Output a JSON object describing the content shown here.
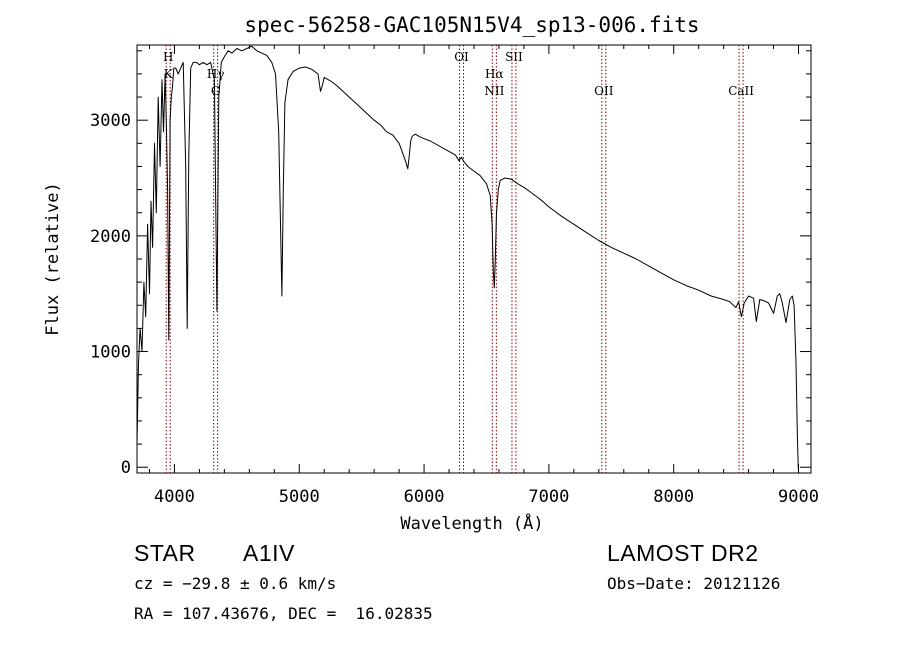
{
  "chart_data": {
    "type": "line",
    "title": "spec-56258-GAC105N15V4_sp13-006.fits",
    "xlabel": "Wavelength (Å)",
    "ylabel": "Flux (relative)",
    "xlim": [
      3700,
      9100
    ],
    "ylim": [
      -50,
      3650
    ],
    "x_ticks": [
      4000,
      5000,
      6000,
      7000,
      8000,
      9000
    ],
    "y_ticks": [
      0,
      1000,
      2000,
      3000
    ],
    "grid": false,
    "series": [
      {
        "x": [
          3700,
          3712,
          3725,
          3740,
          3755,
          3770,
          3785,
          3800,
          3812,
          3825,
          3840,
          3855,
          3870,
          3885,
          3900,
          3912,
          3925,
          3935,
          3945,
          3955,
          3965,
          3975,
          3985,
          3995,
          4010,
          4030,
          4050,
          4070,
          4090,
          4102,
          4115,
          4130,
          4150,
          4175,
          4200,
          4230,
          4260,
          4290,
          4320,
          4340,
          4355,
          4375,
          4400,
          4430,
          4460,
          4500,
          4540,
          4580,
          4620,
          4660,
          4700,
          4740,
          4780,
          4810,
          4835,
          4850,
          4861,
          4872,
          4885,
          4910,
          4950,
          5000,
          5050,
          5100,
          5150,
          5170,
          5185,
          5200,
          5250,
          5300,
          5350,
          5400,
          5450,
          5500,
          5550,
          5600,
          5650,
          5700,
          5750,
          5800,
          5850,
          5870,
          5880,
          5893,
          5905,
          5930,
          5960,
          6000,
          6050,
          6100,
          6150,
          6200,
          6250,
          6280,
          6300,
          6320,
          6350,
          6400,
          6450,
          6500,
          6530,
          6545,
          6555,
          6563,
          6571,
          6580,
          6595,
          6610,
          6650,
          6700,
          6750,
          6800,
          6850,
          6900,
          6950,
          7000,
          7100,
          7200,
          7300,
          7400,
          7500,
          7600,
          7700,
          7800,
          7900,
          8000,
          8100,
          8200,
          8300,
          8400,
          8450,
          8498,
          8520,
          8542,
          8565,
          8600,
          8640,
          8662,
          8690,
          8720,
          8760,
          8800,
          8830,
          8850,
          8870,
          8900,
          8930,
          8950,
          8965,
          8980,
          8990,
          8998
        ],
        "values": [
          200,
          900,
          1200,
          1000,
          1600,
          1300,
          2100,
          1500,
          2300,
          1900,
          2800,
          2200,
          3200,
          2600,
          3350,
          2900,
          3400,
          3000,
          2400,
          1100,
          3000,
          3200,
          3300,
          3450,
          3450,
          3400,
          3450,
          3500,
          2600,
          1200,
          2700,
          3450,
          3500,
          3500,
          3480,
          3500,
          3480,
          3500,
          3350,
          1350,
          3200,
          3500,
          3550,
          3600,
          3580,
          3620,
          3600,
          3620,
          3640,
          3600,
          3580,
          3560,
          3500,
          3400,
          2900,
          2100,
          1480,
          2400,
          3150,
          3350,
          3420,
          3450,
          3460,
          3440,
          3400,
          3250,
          3300,
          3370,
          3340,
          3300,
          3250,
          3200,
          3150,
          3100,
          3050,
          3000,
          2960,
          2900,
          2870,
          2800,
          2650,
          2580,
          2680,
          2820,
          2860,
          2880,
          2860,
          2840,
          2820,
          2790,
          2760,
          2730,
          2700,
          2650,
          2680,
          2640,
          2600,
          2560,
          2520,
          2450,
          2350,
          2100,
          1700,
          1550,
          1800,
          2200,
          2400,
          2480,
          2500,
          2490,
          2450,
          2420,
          2380,
          2340,
          2300,
          2250,
          2170,
          2100,
          2030,
          1960,
          1900,
          1850,
          1800,
          1740,
          1680,
          1620,
          1570,
          1530,
          1480,
          1450,
          1430,
          1380,
          1430,
          1300,
          1420,
          1480,
          1460,
          1260,
          1450,
          1440,
          1420,
          1330,
          1480,
          1500,
          1420,
          1250,
          1450,
          1480,
          1400,
          900,
          300,
          -20
        ]
      }
    ],
    "lines": [
      {
        "label": "H",
        "label2": "K",
        "x": 3950
      },
      {
        "label": "Hγ",
        "label2": "G",
        "x": 4330
      },
      {
        "label": "OI",
        "x": 6300
      },
      {
        "label": "Hα",
        "label2": "NII",
        "x": 6563
      },
      {
        "label": "SII",
        "x": 6720
      },
      {
        "label": "OII",
        "x": 7440
      },
      {
        "label": "CaII",
        "x": 8540
      }
    ],
    "line_color": "#8b0000",
    "annotations": {
      "object_class": "STAR",
      "subclass": "A1IV",
      "survey": "LAMOST DR2",
      "cz": "cz = −29.8 ± 0.6 km/s",
      "obs_date": "Obs−Date: 20121126",
      "coords": "RA = 107.43676, DEC =  16.02835"
    }
  }
}
